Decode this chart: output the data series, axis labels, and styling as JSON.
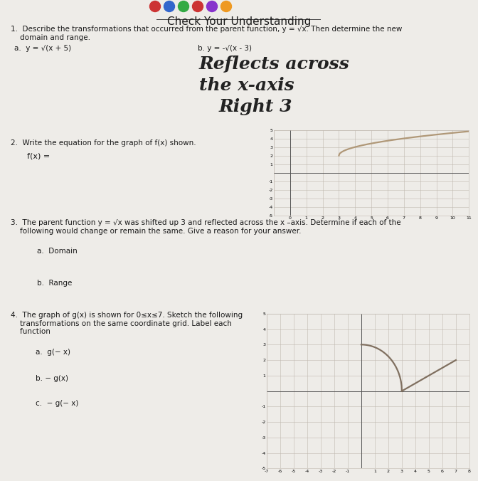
{
  "title": "Check Your Understanding",
  "title_fontsize": 11,
  "bg_color": "#eeece8",
  "text_color": "#1a1a1a",
  "q1_text": "1.  Describe the transformations that occurred from the parent function, y = √x. Then determine the new\n    domain and range.",
  "q1a_label": "a.  y = √(x + 5)",
  "q1b_label": "b. y = -√(x - 3)",
  "handwritten_line1": "Reflects across",
  "handwritten_line2": "the x-axis",
  "handwritten_line3": "Right 3",
  "q2_text": "2.  Write the equation for the graph of f(x) shown.",
  "q2_fx": "f(x) =",
  "q3_text": "3.  The parent function y = √x was shifted up 3 and reflected across the x –axis. Determine if each of the\n    following would change or remain the same. Give a reason for your answer.",
  "q3a_label": "a.  Domain",
  "q3b_label": "b.  Range",
  "q4_text": "4.  The graph of g(x) is shown for 0≤x≤7. Sketch the following\n    transformations on the same coordinate grid. Label each\n    function",
  "q4a_label": "a.  g(− x)",
  "q4b_label": "b. − g(x)",
  "q4c_label": "c.  − g(− x)",
  "graph1_color": "#b09878",
  "graph2_color": "#807060",
  "grid_color": "#c0b8b0",
  "axis_color": "#555555",
  "circle_colors": [
    "#cc3333",
    "#3366cc",
    "#33aa44",
    "#cc3333",
    "#8833cc",
    "#ee9922"
  ]
}
